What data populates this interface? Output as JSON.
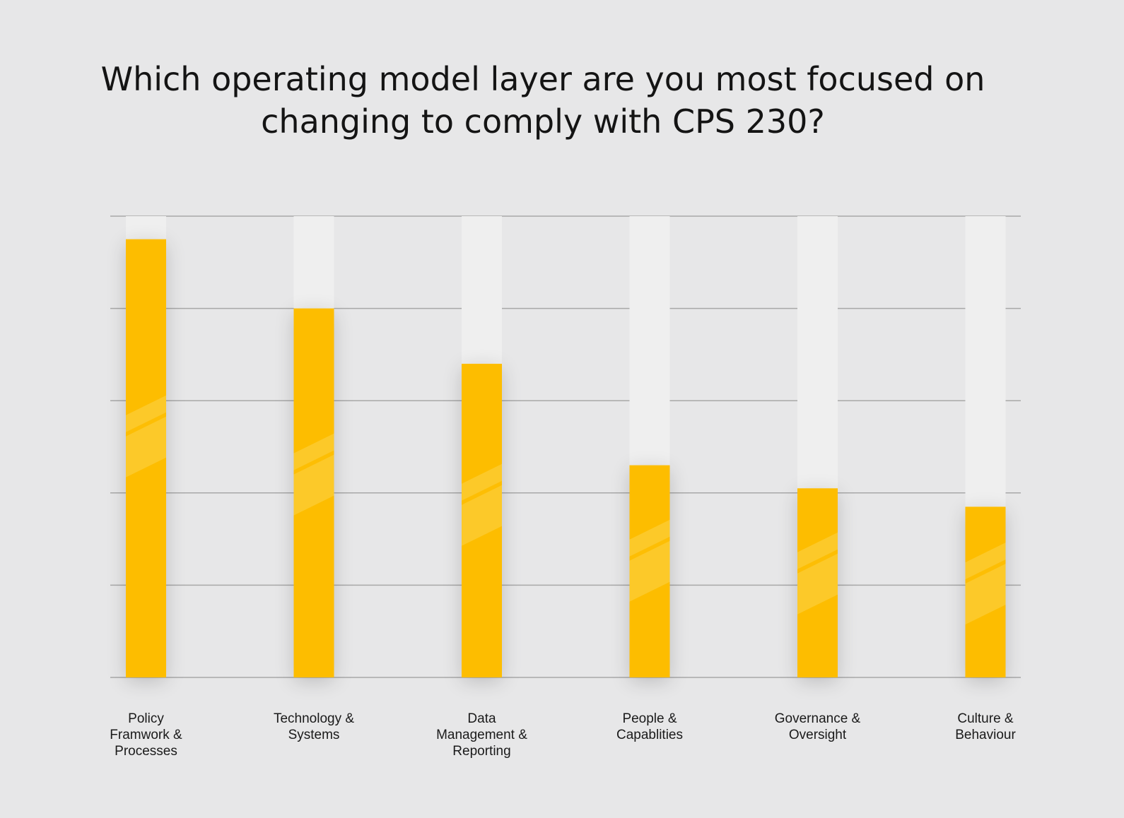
{
  "chart_data": {
    "type": "bar",
    "title_lines": [
      "Which operating model layer are you most focused on",
      "changing to comply with CPS 230?"
    ],
    "categories": [
      [
        "Policy",
        "Framwork &",
        "Processes"
      ],
      [
        "Technology &",
        "Systems"
      ],
      [
        "Data",
        "Management &",
        "Reporting"
      ],
      [
        "People &",
        "Capablities"
      ],
      [
        "Governance &",
        "Oversight"
      ],
      [
        "Culture &",
        "Behaviour"
      ]
    ],
    "values": [
      95,
      80,
      68,
      46,
      41,
      37
    ],
    "ylim": [
      0,
      100
    ],
    "gridlines": [
      0,
      20,
      40,
      60,
      80,
      100
    ],
    "grid": true,
    "xlabel": "",
    "ylabel": "",
    "colors": {
      "bar": "#fdbd00",
      "bar_stripe": "#fcca2e",
      "bar_track": "#efefef",
      "grid": "#a8a8a8",
      "background": "#e7e7e8",
      "text": "#141414"
    }
  }
}
